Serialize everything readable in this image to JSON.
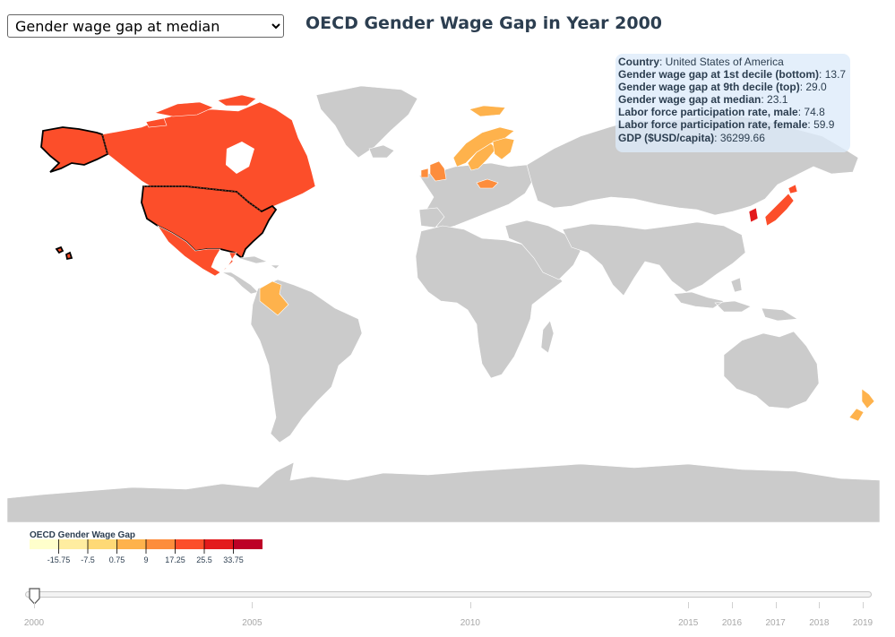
{
  "controls": {
    "metric_selected": "Gender wage gap at median"
  },
  "title": "OECD Gender Wage Gap in Year 2000",
  "colors": {
    "no_data": "#cbcbcb",
    "scale": [
      "#ffffcc",
      "#ffeda0",
      "#fed976",
      "#feb24c",
      "#fd8d3c",
      "#fc4e2a",
      "#e31a1c",
      "#bd0026"
    ],
    "highlight_stroke": "#000000",
    "tooltip_bg": "#dceafa"
  },
  "map": {
    "highlighted_country": "United States of America",
    "colored_countries": [
      {
        "name": "United States of America",
        "color": "#fc4e2a"
      },
      {
        "name": "Canada",
        "color": "#fc4e2a"
      },
      {
        "name": "Mexico",
        "color": "#fc4e2a"
      },
      {
        "name": "Colombia",
        "color": "#feb24c"
      },
      {
        "name": "United Kingdom",
        "color": "#fd8d3c"
      },
      {
        "name": "Ireland",
        "color": "#fd8d3c"
      },
      {
        "name": "Norway",
        "color": "#feb24c"
      },
      {
        "name": "Sweden",
        "color": "#feb24c"
      },
      {
        "name": "Finland",
        "color": "#feb24c"
      },
      {
        "name": "Czech Republic",
        "color": "#fd8d3c"
      },
      {
        "name": "Japan",
        "color": "#fc4e2a"
      },
      {
        "name": "South Korea",
        "color": "#e31a1c"
      },
      {
        "name": "New Zealand",
        "color": "#feb24c"
      }
    ]
  },
  "tooltip": {
    "rows": [
      {
        "key": "Country",
        "value": "United States of America"
      },
      {
        "key": "Gender wage gap at 1st decile (bottom)",
        "value": "13.7"
      },
      {
        "key": "Gender wage gap at 9th decile (top)",
        "value": "29.0"
      },
      {
        "key": "Gender wage gap at median",
        "value": "23.1"
      },
      {
        "key": "Labor force participation rate, male",
        "value": "74.8"
      },
      {
        "key": "Labor force participation rate, female",
        "value": "59.9"
      },
      {
        "key": "GDP ($USD/capita)",
        "value": "36299.66"
      }
    ]
  },
  "legend": {
    "title": "OECD Gender Wage Gap",
    "tick_labels": [
      "-15.75",
      "-7.5",
      "0.75",
      "9",
      "17.25",
      "25.5",
      "33.75"
    ]
  },
  "slider": {
    "current_year": 2000,
    "min_year": 2000,
    "max_year": 2019,
    "tick_years": [
      2000,
      2005,
      2010,
      2015,
      2016,
      2017,
      2018,
      2019
    ]
  }
}
